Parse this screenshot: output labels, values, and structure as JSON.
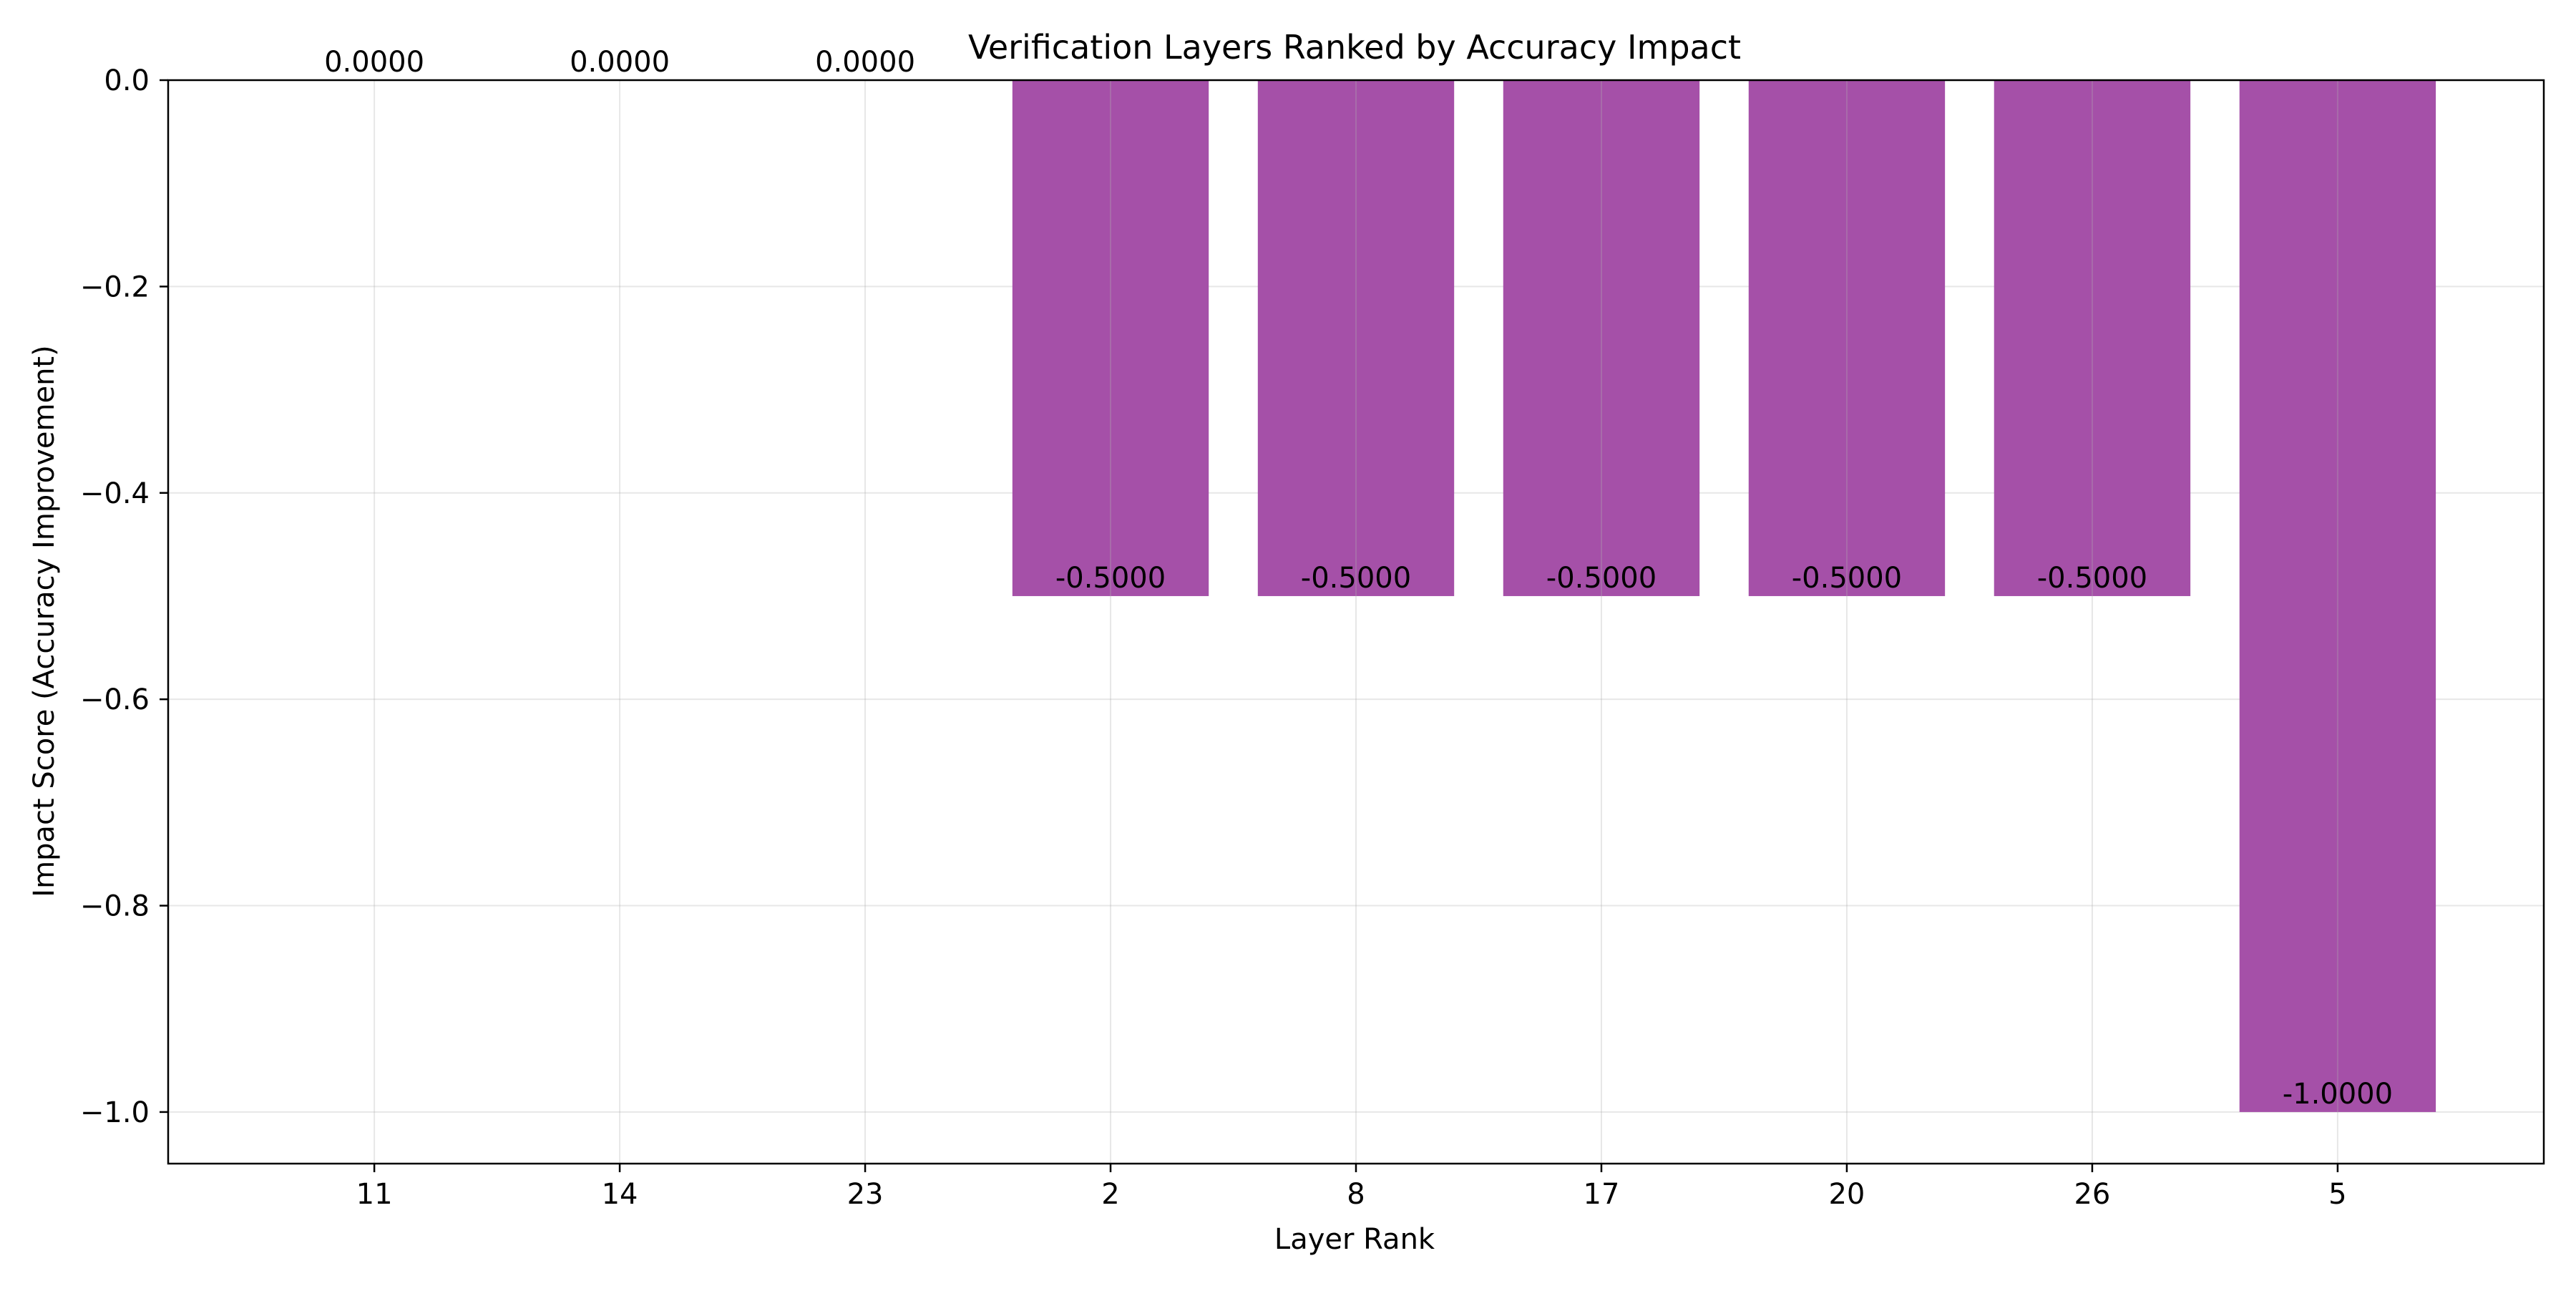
{
  "chart_data": {
    "type": "bar",
    "title": "Verification Layers Ranked by Accuracy Impact",
    "xlabel": "Layer Rank",
    "ylabel": "Impact Score (Accuracy Improvement)",
    "categories": [
      "11",
      "14",
      "23",
      "2",
      "8",
      "17",
      "20",
      "26",
      "5"
    ],
    "values": [
      0.0,
      0.0,
      0.0,
      -0.5,
      -0.5,
      -0.5,
      -0.5,
      -0.5,
      -1.0
    ],
    "data_labels": [
      "0.0000",
      "0.0000",
      "0.0000",
      "-0.5000",
      "-0.5000",
      "-0.5000",
      "-0.5000",
      "-0.5000",
      "-1.0000"
    ],
    "ylim": [
      -1.05,
      0.0
    ],
    "yticks": [
      0.0,
      -0.2,
      -0.4,
      -0.6,
      -0.8,
      -1.0
    ],
    "ytick_labels": [
      "0.0",
      "−0.2",
      "−0.4",
      "−0.6",
      "−0.8",
      "−1.0"
    ],
    "grid": true,
    "bar_color": "#a34ca6"
  }
}
